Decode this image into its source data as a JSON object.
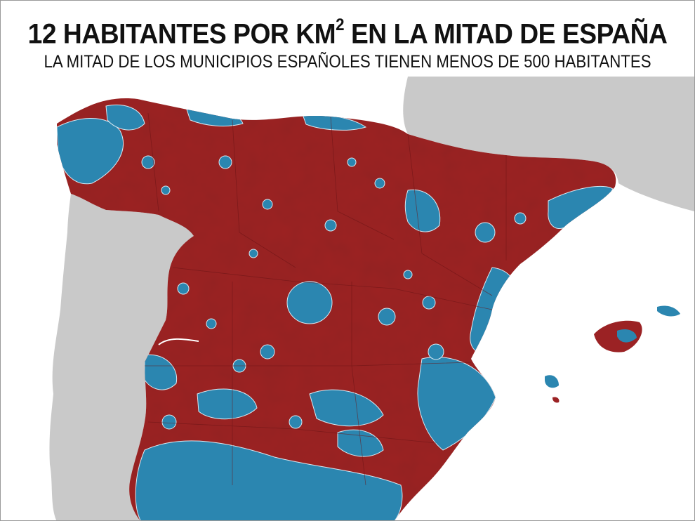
{
  "map": {
    "title_prefix": "12 HABITANTES POR KM",
    "title_superscript": "2",
    "title_suffix": " EN LA MITAD DE ESPAÑA",
    "subtitle": "LA MITAD DE LOS MUNICIPIOS ESPAÑOLES TIENEN MENOS DE 500 HABITANTES",
    "colors": {
      "low_density": "#9b2224",
      "other": "#2b86b0",
      "land_outside": "#c9c9c9",
      "sea": "#ffffff",
      "boundary": "#6b1416"
    },
    "regions": [
      "Portugal",
      "Francia",
      "España",
      "Islas Baleares"
    ]
  }
}
